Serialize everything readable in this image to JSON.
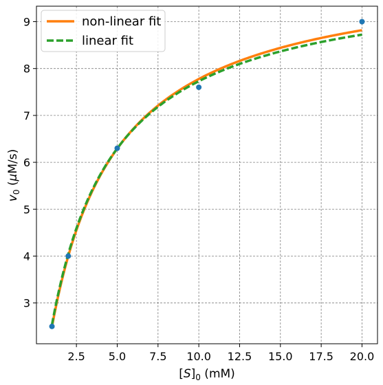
{
  "chart_data": {
    "type": "line",
    "xlabel_parts": {
      "pre": "[",
      "var": "S",
      "post": "]",
      "sub": "0",
      "unit": " (mM)"
    },
    "ylabel_parts": {
      "var": "v",
      "sub": "0",
      "unit_pre": " (",
      "mu": "μ",
      "unit_post": "M/s)"
    },
    "xlim": [
      0.05,
      20.95
    ],
    "ylim": [
      2.13,
      9.33
    ],
    "xticks": [
      2.5,
      5.0,
      7.5,
      10.0,
      12.5,
      15.0,
      17.5,
      20.0
    ],
    "xtick_labels": [
      "2.5",
      "5.0",
      "7.5",
      "10.0",
      "12.5",
      "15.0",
      "17.5",
      "20.0"
    ],
    "yticks": [
      3,
      4,
      5,
      6,
      7,
      8,
      9
    ],
    "ytick_labels": [
      "3",
      "4",
      "5",
      "6",
      "7",
      "8",
      "9"
    ],
    "grid": true,
    "legend_position": "top-left",
    "data_points": {
      "x": [
        1,
        2,
        5,
        10,
        20
      ],
      "y": [
        2.5,
        4.0,
        6.3,
        7.6,
        9.0
      ],
      "color": "#1f77b4"
    },
    "series": [
      {
        "name": "non-linear fit",
        "color": "#ff7f0e",
        "style": "solid",
        "vmax": 10.18,
        "km": 3.09
      },
      {
        "name": "linear fit",
        "color": "#2ca02c",
        "style": "dashed",
        "vmax": 10.01,
        "km": 2.95
      }
    ],
    "fit_range": [
      1,
      20
    ]
  }
}
